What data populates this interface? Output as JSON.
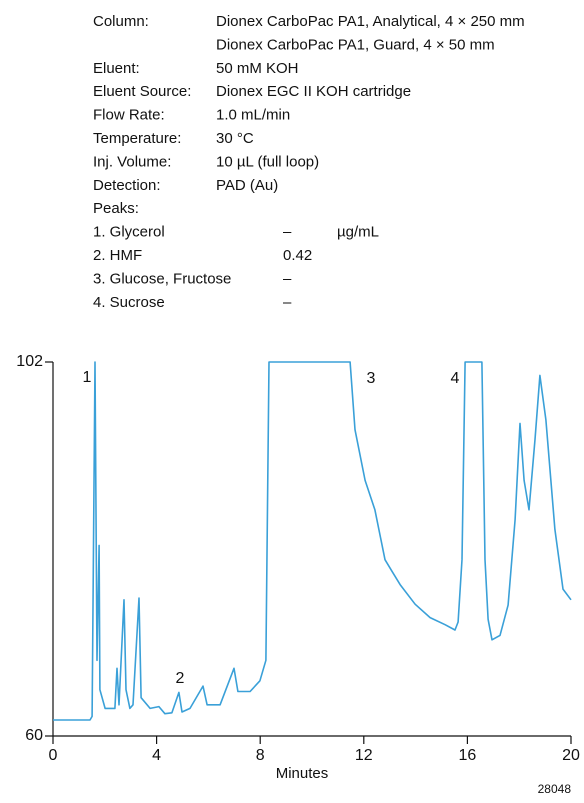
{
  "conditions": [
    {
      "label": "Column:",
      "value": [
        "Dionex CarboPac PA1, Analytical, 4 × 250 mm",
        "Dionex CarboPac PA1, Guard, 4 × 50 mm"
      ]
    },
    {
      "label": "Eluent:",
      "value": [
        "50 mM KOH"
      ]
    },
    {
      "label": "Eluent Source:",
      "value": [
        "Dionex EGC II KOH cartridge"
      ]
    },
    {
      "label": "Flow Rate:",
      "value": [
        "1.0 mL/min"
      ]
    },
    {
      "label": "Temperature:",
      "value": [
        "30 °C"
      ]
    },
    {
      "label": "Inj. Volume:",
      "value": [
        "10 µL (full loop)"
      ]
    },
    {
      "label": "Detection:",
      "value": [
        "PAD (Au)"
      ]
    }
  ],
  "peaks_title": "Peaks:",
  "peaks": [
    {
      "name": "1. Glycerol",
      "amount": "–",
      "unit": "µg/mL"
    },
    {
      "name": "2. HMF",
      "amount": "0.42"
    },
    {
      "name": "3. Glucose, Fructose",
      "amount": "–"
    },
    {
      "name": "4. Sucrose",
      "amount": "–"
    }
  ],
  "chart_data": {
    "type": "line",
    "x_label": "Minutes",
    "figure_id": "28048",
    "annotations": [
      "1",
      "2",
      "3",
      "4"
    ],
    "color": "#3aa0d8",
    "x": [
      0,
      1.43,
      1.51,
      1.62,
      1.7,
      1.78,
      1.81,
      2.01,
      2.39,
      2.47,
      2.55,
      2.74,
      2.82,
      2.97,
      3.09,
      3.32,
      3.4,
      3.75,
      4.09,
      4.32,
      4.59,
      4.86,
      4.98,
      5.29,
      5.79,
      5.95,
      6.45,
      6.99,
      7.14,
      7.61,
      7.99,
      8.22,
      8.34,
      11.47,
      11.66,
      12.05,
      12.43,
      12.82,
      13.09,
      13.4,
      13.98,
      14.56,
      15.14,
      15.52,
      15.64,
      15.79,
      15.91,
      16.56,
      16.68,
      16.8,
      16.95,
      17.26,
      17.57,
      17.84,
      18.03,
      18.19,
      18.38,
      18.61,
      18.8,
      19.03,
      19.38,
      19.69,
      20
    ],
    "values": [
      61.8,
      61.8,
      62.2,
      102,
      68.5,
      81.4,
      65.2,
      63.1,
      63.1,
      67.6,
      63.5,
      75.3,
      65.2,
      63.1,
      63.5,
      75.5,
      64.3,
      63.1,
      63.3,
      62.5,
      62.6,
      64.9,
      62.7,
      63.1,
      65.6,
      63.5,
      63.5,
      67.6,
      65.0,
      65.0,
      66.2,
      68.5,
      102,
      102,
      94.4,
      88.7,
      85.4,
      79.8,
      78.5,
      77.0,
      74.8,
      73.3,
      72.5,
      71.9,
      72.8,
      79.8,
      102,
      102,
      79.8,
      73.1,
      70.8,
      71.3,
      74.7,
      84.3,
      95.1,
      88.7,
      85.4,
      93.3,
      100.5,
      95.5,
      83.2,
      76.5,
      75.3
    ],
    "xlim": [
      0,
      20
    ],
    "ylim": [
      60,
      102
    ],
    "xticks": [
      0,
      4,
      8,
      12,
      16,
      20
    ],
    "yticks": [
      60,
      102
    ]
  }
}
